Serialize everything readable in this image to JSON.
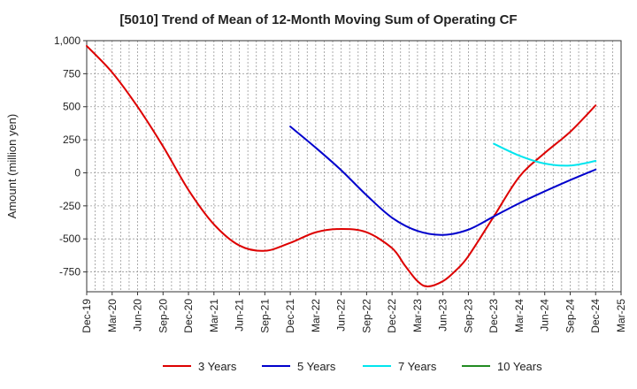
{
  "chart_data": {
    "type": "line",
    "title": "[5010]  Trend of Mean of 12-Month Moving Sum of Operating CF",
    "xlabel": "",
    "ylabel": "Amount (million yen)",
    "ylim": [
      -900,
      1000
    ],
    "y_ticks": [
      1000,
      750,
      500,
      250,
      0,
      -250,
      -500,
      -750
    ],
    "y_tick_labels": [
      "1,000",
      "750",
      "500",
      "250",
      "0",
      "-250",
      "-500",
      "-750"
    ],
    "x_tick_labels": [
      "Dec-19",
      "Mar-20",
      "Jun-20",
      "Sep-20",
      "Dec-20",
      "Mar-21",
      "Jun-21",
      "Sep-21",
      "Dec-21",
      "Mar-22",
      "Jun-22",
      "Sep-22",
      "Dec-22",
      "Mar-23",
      "Jun-23",
      "Sep-23",
      "Dec-23",
      "Mar-24",
      "Jun-24",
      "Sep-24",
      "Dec-24",
      "Mar-25"
    ],
    "grid": true,
    "legend_position": "bottom",
    "series": [
      {
        "name": "3 Years",
        "color": "#dd0000",
        "points": [
          [
            0,
            960
          ],
          [
            1,
            760
          ],
          [
            2,
            500
          ],
          [
            3,
            200
          ],
          [
            4,
            -130
          ],
          [
            5,
            -390
          ],
          [
            6,
            -550
          ],
          [
            7,
            -590
          ],
          [
            8,
            -530
          ],
          [
            9,
            -450
          ],
          [
            10,
            -425
          ],
          [
            11,
            -450
          ],
          [
            12,
            -570
          ],
          [
            12.5,
            -700
          ],
          [
            13,
            -820
          ],
          [
            13.4,
            -860
          ],
          [
            14,
            -820
          ],
          [
            14.5,
            -740
          ],
          [
            15,
            -630
          ],
          [
            16,
            -330
          ],
          [
            17,
            -30
          ],
          [
            18,
            150
          ],
          [
            19,
            310
          ],
          [
            20,
            510
          ]
        ]
      },
      {
        "name": "5 Years",
        "color": "#0000cc",
        "points": [
          [
            8,
            350
          ],
          [
            9,
            190
          ],
          [
            10,
            20
          ],
          [
            11,
            -170
          ],
          [
            12,
            -340
          ],
          [
            13,
            -440
          ],
          [
            14,
            -470
          ],
          [
            15,
            -430
          ],
          [
            16,
            -330
          ],
          [
            17,
            -230
          ],
          [
            18,
            -140
          ],
          [
            19,
            -55
          ],
          [
            20,
            25
          ]
        ]
      },
      {
        "name": "7 Years",
        "color": "#00e5ee",
        "points": [
          [
            16,
            220
          ],
          [
            17,
            130
          ],
          [
            18,
            70
          ],
          [
            19,
            55
          ],
          [
            20,
            90
          ]
        ]
      },
      {
        "name": "10 Years",
        "color": "#228b22",
        "points": []
      }
    ]
  }
}
